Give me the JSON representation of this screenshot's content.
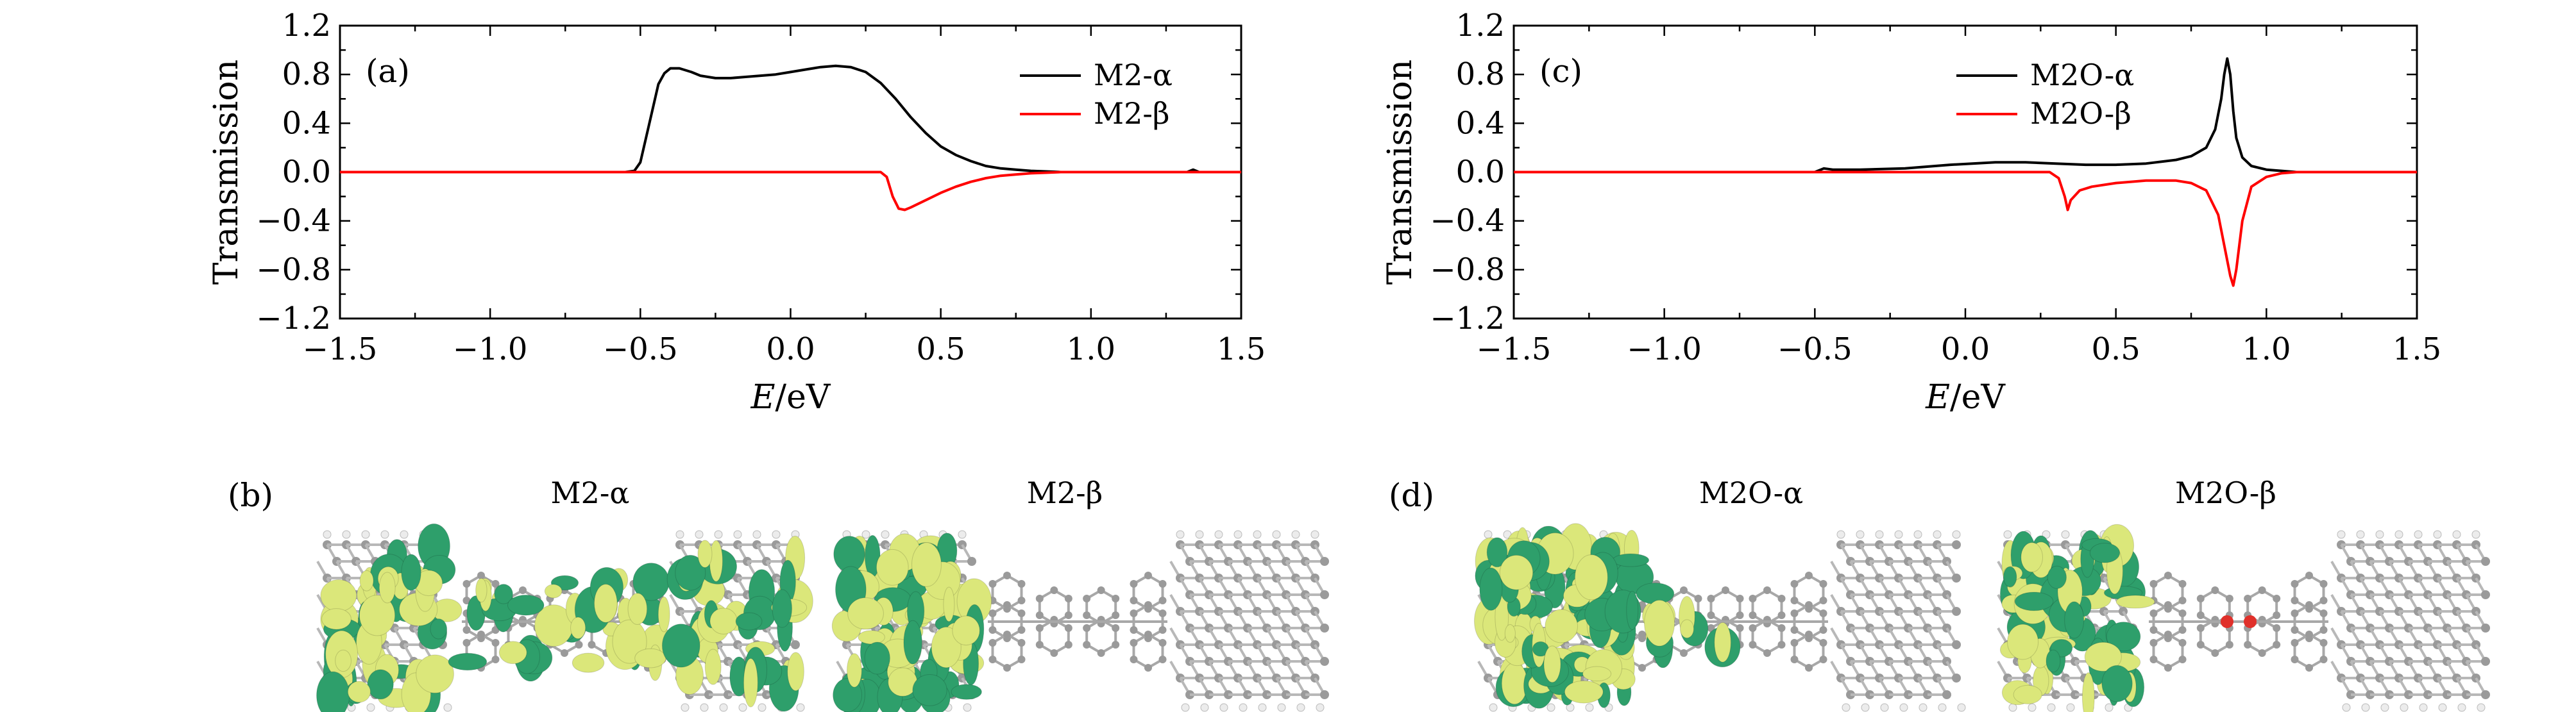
{
  "chart_data": [
    {
      "type": "line",
      "panel_label": "(a)",
      "xlabel_italic": "E",
      "xlabel_unit": "/eV",
      "ylabel": "Transmission",
      "xlim": [
        -1.5,
        1.5
      ],
      "ylim": [
        -1.2,
        1.2
      ],
      "xticks": [
        -1.5,
        -1.0,
        -0.5,
        0.0,
        0.5,
        1.0,
        1.5
      ],
      "xtick_labels": [
        "−1.5",
        "−1.0",
        "−0.5",
        "0.0",
        "0.5",
        "1.0",
        "1.5"
      ],
      "yticks": [
        1.2,
        0.8,
        0.4,
        0.0,
        -0.4,
        -0.8,
        -1.2
      ],
      "ytick_labels": [
        "1.2",
        "0.8",
        "0.4",
        "0.0",
        "−0.4",
        "−0.8",
        "−1.2"
      ],
      "legend_position": "top-right",
      "grid": false,
      "series": [
        {
          "name": "M2-α",
          "color": "#000000",
          "x": [
            -1.5,
            -0.55,
            -0.52,
            -0.5,
            -0.47,
            -0.44,
            -0.42,
            -0.4,
            -0.37,
            -0.33,
            -0.3,
            -0.25,
            -0.2,
            -0.15,
            -0.1,
            -0.05,
            0.0,
            0.05,
            0.1,
            0.15,
            0.2,
            0.25,
            0.3,
            0.35,
            0.4,
            0.45,
            0.5,
            0.55,
            0.6,
            0.65,
            0.7,
            0.75,
            0.8,
            0.85,
            0.9,
            1.0,
            1.32,
            1.34,
            1.36,
            1.5
          ],
          "y": [
            0.0,
            0.0,
            0.01,
            0.08,
            0.4,
            0.72,
            0.81,
            0.85,
            0.85,
            0.82,
            0.79,
            0.77,
            0.77,
            0.78,
            0.79,
            0.8,
            0.82,
            0.84,
            0.86,
            0.87,
            0.86,
            0.82,
            0.73,
            0.6,
            0.45,
            0.32,
            0.21,
            0.14,
            0.09,
            0.05,
            0.03,
            0.02,
            0.01,
            0.005,
            0.0,
            0.0,
            0.0,
            0.02,
            0.0,
            0.0
          ]
        },
        {
          "name": "M2-β",
          "color": "#ff0000",
          "x": [
            -1.5,
            0.3,
            0.32,
            0.34,
            0.36,
            0.38,
            0.4,
            0.45,
            0.5,
            0.55,
            0.6,
            0.65,
            0.7,
            0.75,
            0.8,
            0.85,
            0.9,
            1.0,
            1.5
          ],
          "y": [
            0.0,
            0.0,
            -0.04,
            -0.2,
            -0.3,
            -0.31,
            -0.29,
            -0.23,
            -0.17,
            -0.12,
            -0.08,
            -0.05,
            -0.03,
            -0.02,
            -0.01,
            -0.005,
            0.0,
            0.0,
            0.0
          ]
        }
      ]
    },
    {
      "type": "line",
      "panel_label": "(c)",
      "xlabel_italic": "E",
      "xlabel_unit": "/eV",
      "ylabel": "Transmission",
      "xlim": [
        -1.5,
        1.5
      ],
      "ylim": [
        -1.2,
        1.2
      ],
      "xticks": [
        -1.5,
        -1.0,
        -0.5,
        0.0,
        0.5,
        1.0,
        1.5
      ],
      "xtick_labels": [
        "−1.5",
        "−1.0",
        "−0.5",
        "0.0",
        "0.5",
        "1.0",
        "1.5"
      ],
      "yticks": [
        1.2,
        0.8,
        0.4,
        0.0,
        -0.4,
        -0.8,
        -1.2
      ],
      "ytick_labels": [
        "1.2",
        "0.8",
        "0.4",
        "0.0",
        "−0.4",
        "−0.8",
        "−1.2"
      ],
      "legend_position": "top-center",
      "grid": false,
      "series": [
        {
          "name": "M2O-α",
          "color": "#000000",
          "x": [
            -1.5,
            -0.5,
            -0.47,
            -0.44,
            -0.35,
            -0.2,
            -0.05,
            0.1,
            0.2,
            0.3,
            0.4,
            0.5,
            0.6,
            0.7,
            0.75,
            0.8,
            0.83,
            0.85,
            0.86,
            0.87,
            0.88,
            0.89,
            0.9,
            0.92,
            0.95,
            1.0,
            1.05,
            1.1,
            1.5
          ],
          "y": [
            0.0,
            0.0,
            0.03,
            0.02,
            0.02,
            0.03,
            0.06,
            0.08,
            0.08,
            0.07,
            0.06,
            0.06,
            0.07,
            0.1,
            0.13,
            0.2,
            0.35,
            0.6,
            0.8,
            0.93,
            0.8,
            0.5,
            0.28,
            0.12,
            0.05,
            0.02,
            0.01,
            0.0,
            0.0
          ]
        },
        {
          "name": "M2O-β",
          "color": "#ff0000",
          "x": [
            -1.5,
            0.28,
            0.31,
            0.33,
            0.34,
            0.35,
            0.38,
            0.42,
            0.5,
            0.6,
            0.7,
            0.75,
            0.8,
            0.84,
            0.86,
            0.88,
            0.89,
            0.9,
            0.92,
            0.95,
            1.0,
            1.05,
            1.1,
            1.5
          ],
          "y": [
            0.0,
            0.0,
            -0.05,
            -0.2,
            -0.31,
            -0.23,
            -0.15,
            -0.12,
            -0.09,
            -0.07,
            -0.07,
            -0.09,
            -0.15,
            -0.35,
            -0.6,
            -0.85,
            -0.93,
            -0.8,
            -0.4,
            -0.12,
            -0.04,
            -0.01,
            0.0,
            0.0
          ]
        }
      ]
    }
  ],
  "structures": [
    {
      "panel_label": "(b)",
      "left_title": "M2-α",
      "right_title": "M2-β"
    },
    {
      "panel_label": "(d)",
      "left_title": "M2O-α",
      "right_title": "M2O-β"
    }
  ],
  "colors": {
    "orbital_green": "#2e9f6b",
    "orbital_yellow": "#dbe77a",
    "carbon_atom": "#9a9a9a",
    "hydrogen_atom": "#ececec",
    "oxygen_atom": "#e0302a"
  }
}
